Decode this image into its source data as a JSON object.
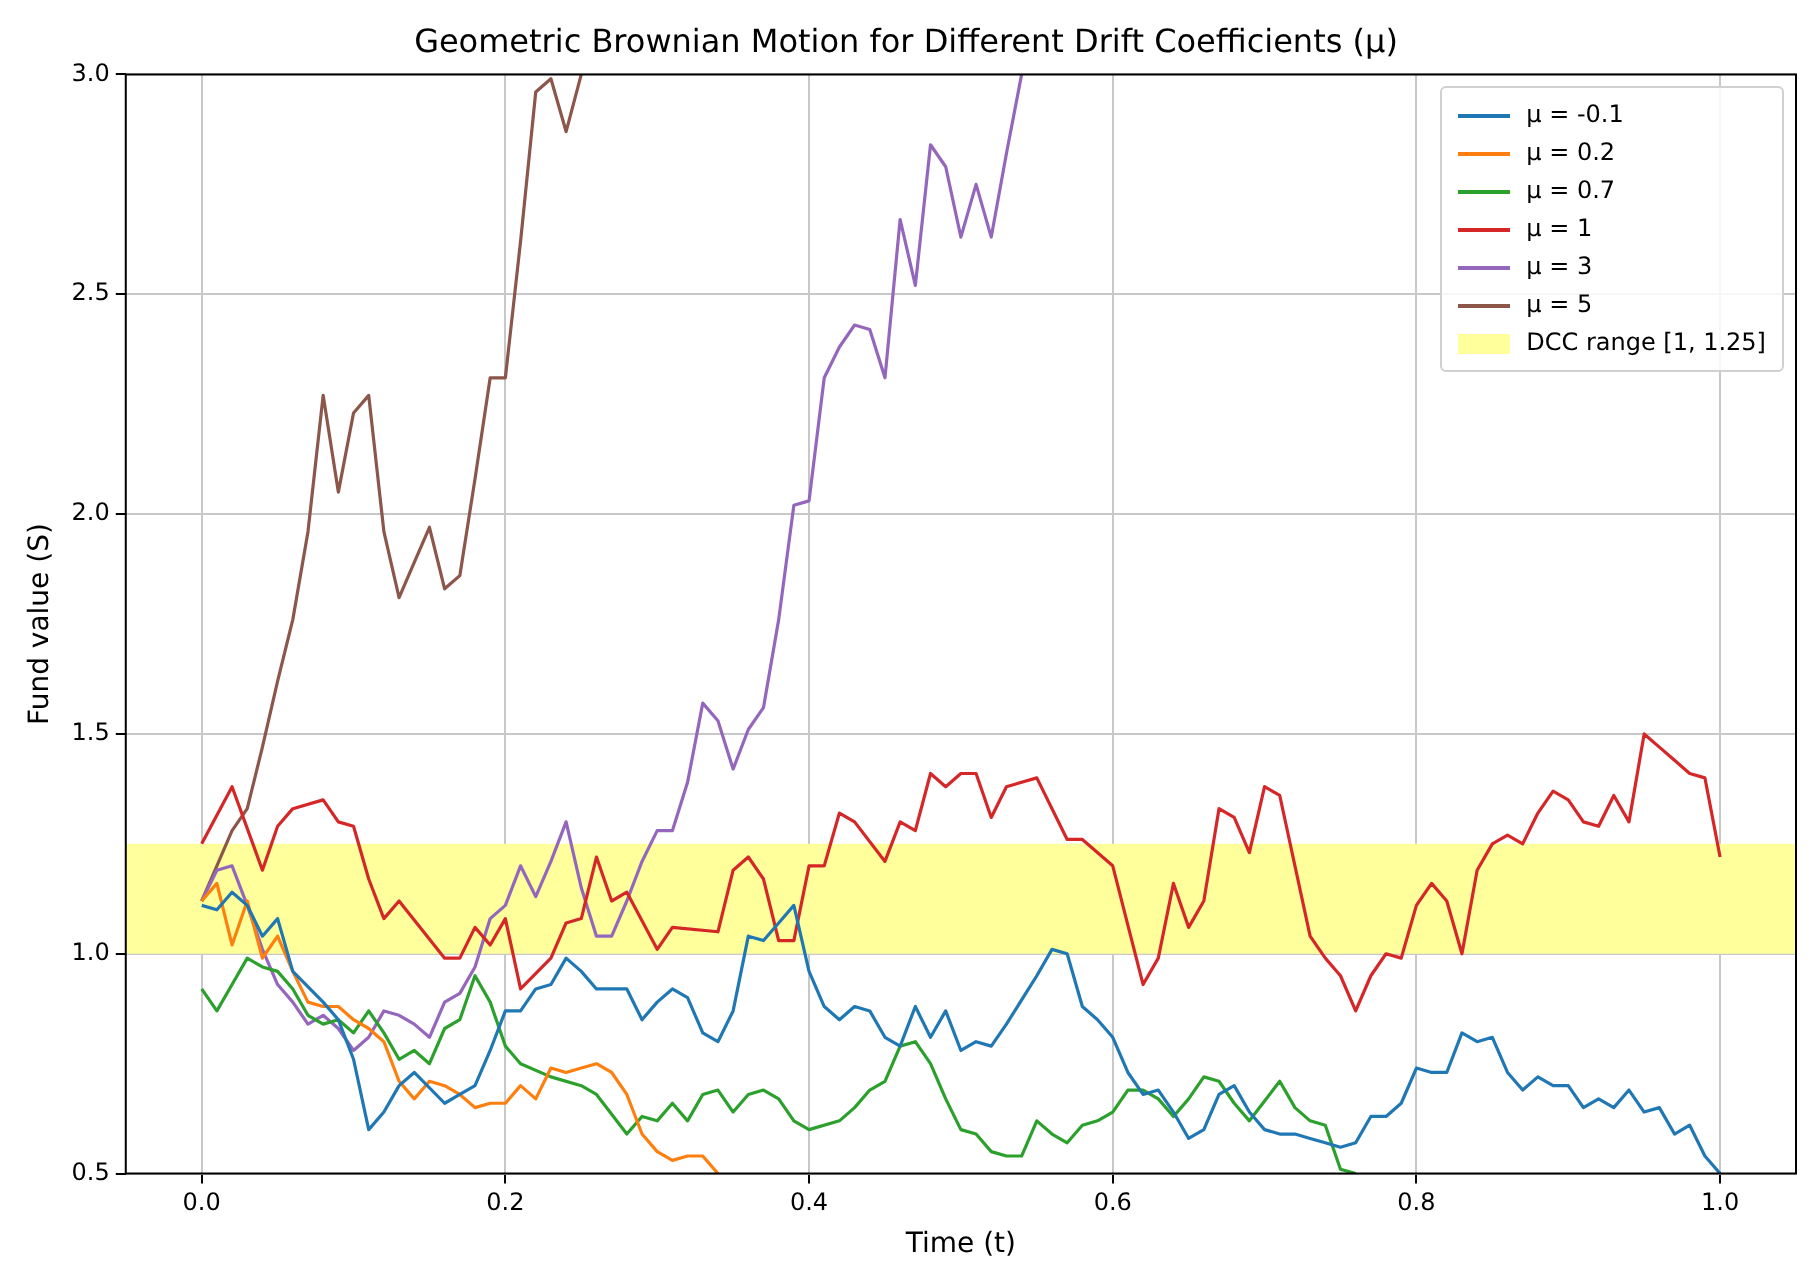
{
  "chart_data": {
    "type": "line",
    "title": "Geometric Brownian Motion for Different Drift Coefficients (μ)",
    "xlabel": "Time (t)",
    "ylabel": "Fund value (S)",
    "xlim": [
      -0.05,
      1.05
    ],
    "ylim": [
      0.5,
      3.0
    ],
    "xticks": [
      {
        "value": 0,
        "label": "0.0"
      },
      {
        "value": 0.2,
        "label": "0.2"
      },
      {
        "value": 0.4,
        "label": "0.4"
      },
      {
        "value": 0.6,
        "label": "0.6"
      },
      {
        "value": 0.8,
        "label": "0.8"
      },
      {
        "value": 1,
        "label": "1.0"
      }
    ],
    "yticks": [
      {
        "value": 0.5,
        "label": "0.5"
      },
      {
        "value": 1,
        "label": "1.0"
      },
      {
        "value": 1.5,
        "label": "1.5"
      },
      {
        "value": 2,
        "label": "2.0"
      },
      {
        "value": 2.5,
        "label": "2.5"
      },
      {
        "value": 3,
        "label": "3.0"
      }
    ],
    "grid": true,
    "legend": "top right",
    "bands": [
      {
        "axis": "y",
        "from": 1,
        "to": 1.25,
        "label": "DCC range [1, 1.25]",
        "color": "#ffff9c"
      }
    ],
    "series": [
      {
        "name": "μ = -0.1",
        "color": "#1f77b4",
        "x": [
          0,
          0.01,
          0.02,
          0.03,
          0.04,
          0.05,
          0.06,
          0.08,
          0.09,
          0.1,
          0.11,
          0.12,
          0.13,
          0.14,
          0.16,
          0.17,
          0.18,
          0.19,
          0.2,
          0.21,
          0.22,
          0.23,
          0.24,
          0.25,
          0.26,
          0.27,
          0.28,
          0.29,
          0.3,
          0.31,
          0.32,
          0.33,
          0.34,
          0.35,
          0.36,
          0.37,
          0.38,
          0.39,
          0.4,
          0.41,
          0.42,
          0.43,
          0.44,
          0.45,
          0.46,
          0.47,
          0.48,
          0.49,
          0.5,
          0.51,
          0.52,
          0.53,
          0.55,
          0.56,
          0.57,
          0.58,
          0.59,
          0.6,
          0.61,
          0.62,
          0.63,
          0.64,
          0.65,
          0.66,
          0.67,
          0.68,
          0.69,
          0.7,
          0.71,
          0.72,
          0.73,
          0.74,
          0.75,
          0.76,
          0.77,
          0.78,
          0.79,
          0.8,
          0.81,
          0.82,
          0.83,
          0.84,
          0.85,
          0.86,
          0.87,
          0.88,
          0.89,
          0.9,
          0.91,
          0.92,
          0.93,
          0.94,
          0.95,
          0.96,
          0.97,
          0.98,
          0.99,
          1
        ],
        "values": [
          1.11,
          1.1,
          1.14,
          1.11,
          1.04,
          1.08,
          0.96,
          0.89,
          0.85,
          0.76,
          0.6,
          0.64,
          0.7,
          0.73,
          0.66,
          0.68,
          0.7,
          0.78,
          0.87,
          0.87,
          0.92,
          0.93,
          0.99,
          0.96,
          0.92,
          0.92,
          0.92,
          0.85,
          0.89,
          0.92,
          0.9,
          0.82,
          0.8,
          0.87,
          1.04,
          1.03,
          1.07,
          1.11,
          0.96,
          0.88,
          0.85,
          0.88,
          0.87,
          0.81,
          0.79,
          0.88,
          0.81,
          0.87,
          0.78,
          0.8,
          0.79,
          0.84,
          0.95,
          1.01,
          1.0,
          0.88,
          0.85,
          0.81,
          0.73,
          0.68,
          0.69,
          0.64,
          0.58,
          0.6,
          0.68,
          0.7,
          0.64,
          0.6,
          0.59,
          0.59,
          0.58,
          0.57,
          0.56,
          0.57,
          0.63,
          0.63,
          0.66,
          0.74,
          0.73,
          0.73,
          0.82,
          0.8,
          0.81,
          0.73,
          0.69,
          0.72,
          0.7,
          0.7,
          0.65,
          0.67,
          0.65,
          0.69,
          0.64,
          0.65,
          0.59,
          0.61,
          0.54,
          0.5
        ]
      },
      {
        "name": "μ = 0.2",
        "color": "#ff7f0e",
        "x": [
          0,
          0.01,
          0.02,
          0.03,
          0.04,
          0.05,
          0.06,
          0.07,
          0.08,
          0.09,
          0.1,
          0.11,
          0.12,
          0.13,
          0.14,
          0.15,
          0.16,
          0.17,
          0.18,
          0.19,
          0.2,
          0.21,
          0.22,
          0.23,
          0.24,
          0.25,
          0.26,
          0.27,
          0.28,
          0.29,
          0.3,
          0.31,
          0.32,
          0.33,
          0.34
        ],
        "values": [
          1.12,
          1.16,
          1.02,
          1.12,
          0.99,
          1.04,
          0.96,
          0.89,
          0.88,
          0.88,
          0.85,
          0.83,
          0.8,
          0.71,
          0.67,
          0.71,
          0.7,
          0.68,
          0.65,
          0.66,
          0.66,
          0.7,
          0.67,
          0.74,
          0.73,
          0.74,
          0.75,
          0.73,
          0.68,
          0.59,
          0.55,
          0.53,
          0.54,
          0.54,
          0.5
        ]
      },
      {
        "name": "μ = 0.7",
        "color": "#2ca02c",
        "x": [
          0,
          0.01,
          0.02,
          0.03,
          0.04,
          0.05,
          0.06,
          0.07,
          0.08,
          0.09,
          0.1,
          0.11,
          0.12,
          0.13,
          0.14,
          0.15,
          0.16,
          0.17,
          0.18,
          0.19,
          0.2,
          0.21,
          0.23,
          0.25,
          0.26,
          0.28,
          0.29,
          0.3,
          0.31,
          0.32,
          0.33,
          0.34,
          0.35,
          0.36,
          0.37,
          0.38,
          0.39,
          0.4,
          0.42,
          0.43,
          0.44,
          0.45,
          0.46,
          0.47,
          0.48,
          0.49,
          0.5,
          0.51,
          0.52,
          0.53,
          0.54,
          0.55,
          0.56,
          0.57,
          0.58,
          0.59,
          0.6,
          0.61,
          0.62,
          0.63,
          0.64,
          0.65,
          0.66,
          0.67,
          0.68,
          0.69,
          0.71,
          0.72,
          0.73,
          0.74,
          0.75,
          0.76
        ],
        "values": [
          0.92,
          0.87,
          0.93,
          0.99,
          0.97,
          0.96,
          0.92,
          0.86,
          0.84,
          0.85,
          0.82,
          0.87,
          0.82,
          0.76,
          0.78,
          0.75,
          0.83,
          0.85,
          0.95,
          0.89,
          0.79,
          0.75,
          0.72,
          0.7,
          0.68,
          0.59,
          0.63,
          0.62,
          0.66,
          0.62,
          0.68,
          0.69,
          0.64,
          0.68,
          0.69,
          0.67,
          0.62,
          0.6,
          0.62,
          0.65,
          0.69,
          0.71,
          0.79,
          0.8,
          0.75,
          0.67,
          0.6,
          0.59,
          0.55,
          0.54,
          0.54,
          0.62,
          0.59,
          0.57,
          0.61,
          0.62,
          0.64,
          0.69,
          0.69,
          0.67,
          0.63,
          0.67,
          0.72,
          0.71,
          0.66,
          0.62,
          0.71,
          0.65,
          0.62,
          0.61,
          0.51,
          0.5
        ]
      },
      {
        "name": "μ = 1",
        "color": "#d62728",
        "x": [
          0,
          0.02,
          0.04,
          0.05,
          0.06,
          0.08,
          0.09,
          0.1,
          0.11,
          0.12,
          0.13,
          0.16,
          0.17,
          0.18,
          0.19,
          0.2,
          0.21,
          0.23,
          0.24,
          0.25,
          0.26,
          0.27,
          0.28,
          0.3,
          0.31,
          0.34,
          0.35,
          0.36,
          0.37,
          0.38,
          0.39,
          0.4,
          0.41,
          0.42,
          0.43,
          0.45,
          0.46,
          0.47,
          0.48,
          0.49,
          0.5,
          0.51,
          0.52,
          0.53,
          0.55,
          0.57,
          0.58,
          0.6,
          0.62,
          0.63,
          0.64,
          0.65,
          0.66,
          0.67,
          0.68,
          0.69,
          0.7,
          0.71,
          0.73,
          0.74,
          0.75,
          0.76,
          0.77,
          0.78,
          0.79,
          0.8,
          0.81,
          0.82,
          0.83,
          0.84,
          0.85,
          0.86,
          0.87,
          0.88,
          0.89,
          0.9,
          0.91,
          0.92,
          0.93,
          0.94,
          0.95,
          0.96,
          0.97,
          0.98,
          0.99,
          1
        ],
        "values": [
          1.25,
          1.38,
          1.19,
          1.29,
          1.33,
          1.35,
          1.3,
          1.29,
          1.17,
          1.08,
          1.12,
          0.99,
          0.99,
          1.06,
          1.02,
          1.08,
          0.92,
          0.99,
          1.07,
          1.08,
          1.22,
          1.12,
          1.14,
          1.01,
          1.06,
          1.05,
          1.19,
          1.22,
          1.17,
          1.03,
          1.03,
          1.2,
          1.2,
          1.32,
          1.3,
          1.21,
          1.3,
          1.28,
          1.41,
          1.38,
          1.41,
          1.41,
          1.31,
          1.38,
          1.4,
          1.26,
          1.26,
          1.2,
          0.93,
          0.99,
          1.16,
          1.06,
          1.12,
          1.33,
          1.31,
          1.23,
          1.38,
          1.36,
          1.04,
          0.99,
          0.95,
          0.87,
          0.95,
          1.0,
          0.99,
          1.11,
          1.16,
          1.12,
          1.0,
          1.19,
          1.25,
          1.27,
          1.25,
          1.32,
          1.37,
          1.35,
          1.3,
          1.29,
          1.36,
          1.3,
          1.5,
          1.47,
          1.44,
          1.41,
          1.4,
          1.22
        ]
      },
      {
        "name": "μ = 3",
        "color": "#9467bd",
        "x": [
          0,
          0.01,
          0.02,
          0.03,
          0.04,
          0.05,
          0.06,
          0.07,
          0.08,
          0.09,
          0.1,
          0.11,
          0.12,
          0.13,
          0.14,
          0.15,
          0.16,
          0.17,
          0.18,
          0.19,
          0.2,
          0.21,
          0.22,
          0.23,
          0.24,
          0.25,
          0.26,
          0.27,
          0.28,
          0.29,
          0.3,
          0.31,
          0.32,
          0.33,
          0.34,
          0.35,
          0.36,
          0.37,
          0.38,
          0.39,
          0.4,
          0.41,
          0.42,
          0.43,
          0.44,
          0.45,
          0.46,
          0.47,
          0.48,
          0.49,
          0.5,
          0.51,
          0.52,
          0.53,
          0.54
        ],
        "values": [
          1.12,
          1.19,
          1.2,
          1.11,
          1.01,
          0.93,
          0.89,
          0.84,
          0.86,
          0.83,
          0.78,
          0.81,
          0.87,
          0.86,
          0.84,
          0.81,
          0.89,
          0.91,
          0.97,
          1.08,
          1.11,
          1.2,
          1.13,
          1.21,
          1.3,
          1.15,
          1.04,
          1.04,
          1.12,
          1.21,
          1.28,
          1.28,
          1.39,
          1.57,
          1.53,
          1.42,
          1.51,
          1.56,
          1.76,
          2.02,
          2.03,
          2.31,
          2.38,
          2.43,
          2.42,
          2.31,
          2.67,
          2.52,
          2.84,
          2.79,
          2.63,
          2.75,
          2.63,
          2.82,
          3.0
        ]
      },
      {
        "name": "μ = 5",
        "color": "#8c564b",
        "x": [
          0,
          0.01,
          0.02,
          0.03,
          0.04,
          0.05,
          0.06,
          0.07,
          0.08,
          0.09,
          0.1,
          0.11,
          0.12,
          0.13,
          0.14,
          0.15,
          0.16,
          0.17,
          0.18,
          0.19,
          0.2,
          0.21,
          0.22,
          0.23,
          0.24,
          0.25
        ],
        "values": [
          1.12,
          1.2,
          1.28,
          1.33,
          1.47,
          1.62,
          1.76,
          1.96,
          2.27,
          2.05,
          2.23,
          2.27,
          1.96,
          1.81,
          1.89,
          1.97,
          1.83,
          1.86,
          2.08,
          2.31,
          2.31,
          2.62,
          2.96,
          2.99,
          2.87,
          3.0
        ]
      }
    ]
  }
}
